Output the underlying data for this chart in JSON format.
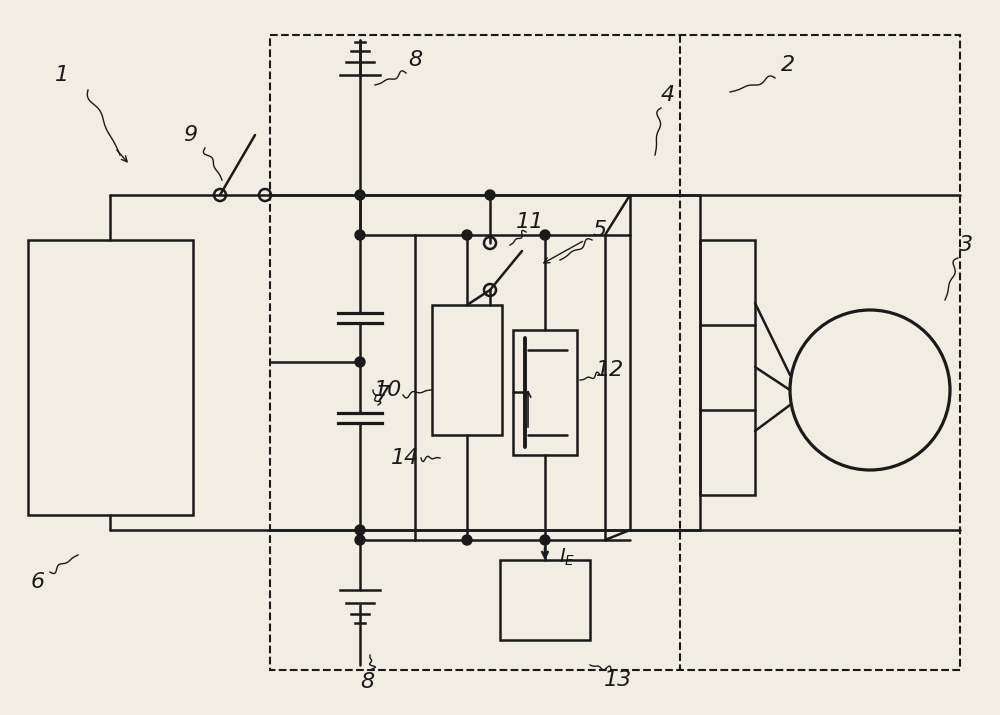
{
  "bg": "#f2ede3",
  "lc": "#1a1a1a",
  "lw": 1.8,
  "fs": 16
}
